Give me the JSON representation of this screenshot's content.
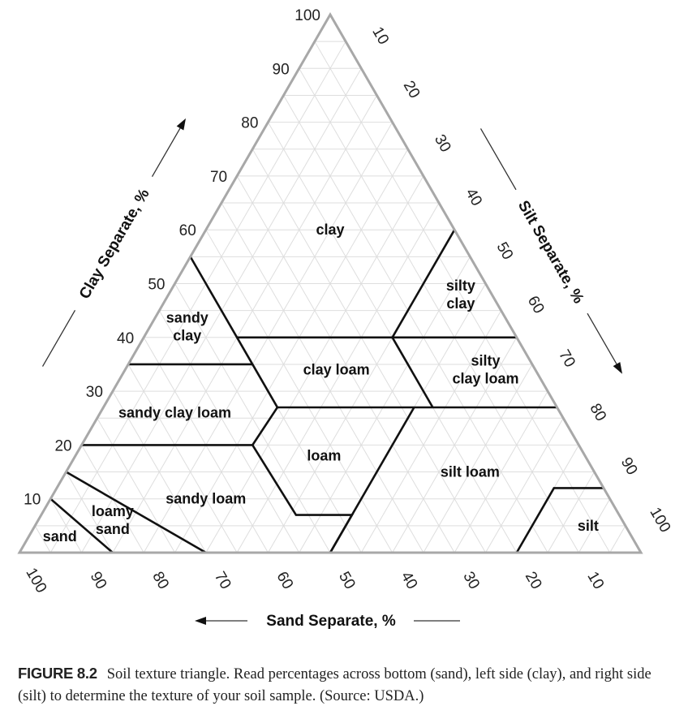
{
  "chart_data": {
    "type": "ternary",
    "axes": {
      "clay": {
        "label": "Clay Separate, %",
        "ticks": [
          "10",
          "20",
          "30",
          "40",
          "50",
          "60",
          "70",
          "80",
          "90",
          "100"
        ]
      },
      "silt": {
        "label": "Silt Separate, %",
        "ticks": [
          "10",
          "20",
          "30",
          "40",
          "50",
          "60",
          "70",
          "80",
          "90",
          "100"
        ]
      },
      "sand": {
        "label": "Sand Separate, %",
        "ticks": [
          "100",
          "90",
          "80",
          "70",
          "60",
          "50",
          "40",
          "30",
          "20",
          "10"
        ]
      }
    },
    "grid_step_percent": 5,
    "boundaries_sand_silt_clay": [
      [
        [
          85,
          15,
          0
        ],
        [
          90,
          0,
          10
        ]
      ],
      [
        [
          70,
          30,
          0
        ],
        [
          85,
          0,
          15
        ]
      ],
      [
        [
          80,
          0,
          20
        ],
        [
          52.5,
          27.5,
          20
        ],
        [
          52,
          41,
          7
        ],
        [
          43,
          50,
          7
        ],
        [
          50,
          50,
          0
        ]
      ],
      [
        [
          50,
          50,
          0
        ],
        [
          23,
          50,
          27
        ]
      ],
      [
        [
          65,
          0,
          35
        ],
        [
          45,
          20,
          35
        ]
      ],
      [
        [
          45,
          0,
          55
        ],
        [
          45,
          20,
          35
        ],
        [
          45,
          28,
          27
        ],
        [
          52.5,
          27.5,
          20
        ]
      ],
      [
        [
          45,
          28,
          27
        ],
        [
          0,
          73,
          27
        ]
      ],
      [
        [
          45,
          15,
          40
        ],
        [
          0,
          60,
          40
        ]
      ],
      [
        [
          20,
          40,
          40
        ],
        [
          0,
          40,
          60
        ]
      ],
      [
        [
          20,
          40,
          40
        ],
        [
          20,
          53,
          27
        ]
      ],
      [
        [
          20,
          80,
          0
        ],
        [
          8,
          80,
          12
        ],
        [
          0,
          88,
          12
        ]
      ]
    ],
    "regions": [
      {
        "label": [
          "clay"
        ],
        "sand": 20,
        "silt": 20,
        "clay": 60
      },
      {
        "label": [
          "sandy",
          "clay"
        ],
        "sand": 52,
        "silt": 6,
        "clay": 42
      },
      {
        "label": [
          "silty",
          "clay"
        ],
        "sand": 5,
        "silt": 47,
        "clay": 48
      },
      {
        "label": [
          "clay loam"
        ],
        "sand": 32,
        "silt": 34,
        "clay": 34
      },
      {
        "label": [
          "silty",
          "clay loam"
        ],
        "sand": 8,
        "silt": 58,
        "clay": 34
      },
      {
        "label": [
          "sandy clay loam"
        ],
        "sand": 62,
        "silt": 12,
        "clay": 26
      },
      {
        "label": [
          "loam"
        ],
        "sand": 42,
        "silt": 40,
        "clay": 18
      },
      {
        "label": [
          "silt loam"
        ],
        "sand": 20,
        "silt": 65,
        "clay": 15
      },
      {
        "label": [
          "sandy loam"
        ],
        "sand": 65,
        "silt": 25,
        "clay": 10
      },
      {
        "label": [
          "loamy",
          "sand"
        ],
        "sand": 82,
        "silt": 12,
        "clay": 6
      },
      {
        "label": [
          "sand"
        ],
        "sand": 92,
        "silt": 5,
        "clay": 3
      },
      {
        "label": [
          "silt"
        ],
        "sand": 6,
        "silt": 89,
        "clay": 5
      }
    ],
    "colors": {
      "boundary": "#111111",
      "edge": "#a8a8a8",
      "grid": "#dedede"
    }
  },
  "caption": {
    "figure_label": "FIGURE 8.2",
    "text": "Soil texture triangle. Read percentages across bottom (sand), left side (clay), and right side (silt) to determine the texture of your soil sample. (Source: USDA.)"
  }
}
